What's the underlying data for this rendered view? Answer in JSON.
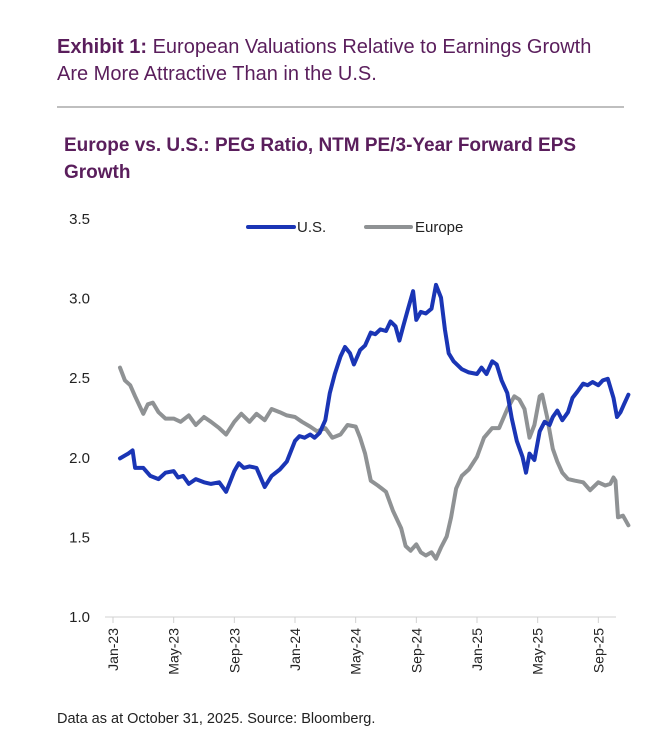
{
  "header": {
    "exhibit_label": "Exhibit 1:",
    "exhibit_title": "European Valuations Relative to Earnings Growth Are More Attractive Than in the U.S."
  },
  "footer": {
    "source": "Data as at October 31, 2025. Source: Bloomberg."
  },
  "colors": {
    "us": "#1a35b5",
    "europe": "#8f9294",
    "title": "#5a1e5c"
  },
  "chart_data": {
    "type": "line",
    "title": "Europe vs. U.S.: PEG Ratio, NTM PE/3-Year Forward EPS Growth",
    "xlabel": "",
    "ylabel": "",
    "ylim": [
      1.0,
      3.5
    ],
    "yticks": [
      "1.0",
      "1.5",
      "2.0",
      "2.5",
      "3.0",
      "3.5"
    ],
    "xlim": [
      "2023-01",
      "2025-10-31"
    ],
    "xticks": [
      "Jan-23",
      "May-23",
      "Sep-23",
      "Jan-24",
      "May-24",
      "Sep-24",
      "Jan-25",
      "May-25",
      "Sep-25"
    ],
    "legend": "top",
    "grid": false,
    "series": [
      {
        "name": "U.S.",
        "color": "#1a35b5",
        "points": [
          [
            "2023-01-15",
            1.99
          ],
          [
            "2023-02-01",
            2.02
          ],
          [
            "2023-02-10",
            2.04
          ],
          [
            "2023-02-15",
            1.93
          ],
          [
            "2023-03-01",
            1.93
          ],
          [
            "2023-03-15",
            1.88
          ],
          [
            "2023-04-01",
            1.86
          ],
          [
            "2023-04-15",
            1.9
          ],
          [
            "2023-05-01",
            1.91
          ],
          [
            "2023-05-10",
            1.87
          ],
          [
            "2023-05-20",
            1.88
          ],
          [
            "2023-06-01",
            1.83
          ],
          [
            "2023-06-15",
            1.86
          ],
          [
            "2023-07-01",
            1.84
          ],
          [
            "2023-07-15",
            1.83
          ],
          [
            "2023-08-01",
            1.84
          ],
          [
            "2023-08-15",
            1.78
          ],
          [
            "2023-09-01",
            1.91
          ],
          [
            "2023-09-10",
            1.96
          ],
          [
            "2023-09-20",
            1.93
          ],
          [
            "2023-10-01",
            1.94
          ],
          [
            "2023-10-15",
            1.93
          ],
          [
            "2023-11-01",
            1.81
          ],
          [
            "2023-11-15",
            1.88
          ],
          [
            "2023-12-01",
            1.92
          ],
          [
            "2023-12-15",
            1.97
          ],
          [
            "2024-01-01",
            2.1
          ],
          [
            "2024-01-10",
            2.13
          ],
          [
            "2024-01-20",
            2.12
          ],
          [
            "2024-02-01",
            2.14
          ],
          [
            "2024-02-10",
            2.12
          ],
          [
            "2024-02-20",
            2.15
          ],
          [
            "2024-03-01",
            2.23
          ],
          [
            "2024-03-10",
            2.4
          ],
          [
            "2024-03-20",
            2.52
          ],
          [
            "2024-04-01",
            2.63
          ],
          [
            "2024-04-10",
            2.69
          ],
          [
            "2024-04-20",
            2.65
          ],
          [
            "2024-04-28",
            2.58
          ],
          [
            "2024-05-10",
            2.67
          ],
          [
            "2024-05-20",
            2.7
          ],
          [
            "2024-06-01",
            2.78
          ],
          [
            "2024-06-10",
            2.77
          ],
          [
            "2024-06-20",
            2.8
          ],
          [
            "2024-07-01",
            2.79
          ],
          [
            "2024-07-10",
            2.85
          ],
          [
            "2024-07-20",
            2.82
          ],
          [
            "2024-07-28",
            2.73
          ],
          [
            "2024-08-05",
            2.82
          ],
          [
            "2024-08-15",
            2.93
          ],
          [
            "2024-08-25",
            3.04
          ],
          [
            "2024-09-01",
            2.86
          ],
          [
            "2024-09-10",
            2.91
          ],
          [
            "2024-09-20",
            2.9
          ],
          [
            "2024-10-01",
            2.93
          ],
          [
            "2024-10-10",
            3.08
          ],
          [
            "2024-10-20",
            3.0
          ],
          [
            "2024-10-28",
            2.8
          ],
          [
            "2024-11-05",
            2.65
          ],
          [
            "2024-11-15",
            2.6
          ],
          [
            "2024-12-01",
            2.55
          ],
          [
            "2024-12-15",
            2.53
          ],
          [
            "2025-01-01",
            2.52
          ],
          [
            "2025-01-10",
            2.56
          ],
          [
            "2025-01-20",
            2.52
          ],
          [
            "2025-02-01",
            2.6
          ],
          [
            "2025-02-10",
            2.58
          ],
          [
            "2025-02-20",
            2.48
          ],
          [
            "2025-03-01",
            2.4
          ],
          [
            "2025-03-10",
            2.24
          ],
          [
            "2025-03-20",
            2.1
          ],
          [
            "2025-04-01",
            2.0
          ],
          [
            "2025-04-08",
            1.9
          ],
          [
            "2025-04-15",
            2.02
          ],
          [
            "2025-04-25",
            1.98
          ],
          [
            "2025-05-05",
            2.16
          ],
          [
            "2025-05-15",
            2.22
          ],
          [
            "2025-05-25",
            2.2
          ],
          [
            "2025-06-01",
            2.25
          ],
          [
            "2025-06-10",
            2.29
          ],
          [
            "2025-06-20",
            2.23
          ],
          [
            "2025-07-01",
            2.28
          ],
          [
            "2025-07-10",
            2.37
          ],
          [
            "2025-07-20",
            2.41
          ],
          [
            "2025-08-01",
            2.46
          ],
          [
            "2025-08-10",
            2.45
          ],
          [
            "2025-08-20",
            2.47
          ],
          [
            "2025-09-01",
            2.45
          ],
          [
            "2025-09-10",
            2.48
          ],
          [
            "2025-09-20",
            2.49
          ],
          [
            "2025-10-01",
            2.37
          ],
          [
            "2025-10-08",
            2.25
          ],
          [
            "2025-10-15",
            2.28
          ],
          [
            "2025-10-22",
            2.33
          ],
          [
            "2025-10-31",
            2.39
          ]
        ]
      },
      {
        "name": "Europe",
        "color": "#8f9294",
        "points": [
          [
            "2023-01-15",
            2.56
          ],
          [
            "2023-01-25",
            2.48
          ],
          [
            "2023-02-05",
            2.45
          ],
          [
            "2023-02-15",
            2.38
          ],
          [
            "2023-03-01",
            2.27
          ],
          [
            "2023-03-10",
            2.33
          ],
          [
            "2023-03-20",
            2.34
          ],
          [
            "2023-04-01",
            2.28
          ],
          [
            "2023-04-15",
            2.24
          ],
          [
            "2023-05-01",
            2.24
          ],
          [
            "2023-05-15",
            2.22
          ],
          [
            "2023-06-01",
            2.26
          ],
          [
            "2023-06-15",
            2.2
          ],
          [
            "2023-07-01",
            2.25
          ],
          [
            "2023-07-15",
            2.22
          ],
          [
            "2023-08-01",
            2.18
          ],
          [
            "2023-08-15",
            2.14
          ],
          [
            "2023-09-01",
            2.22
          ],
          [
            "2023-09-15",
            2.27
          ],
          [
            "2023-10-01",
            2.22
          ],
          [
            "2023-10-15",
            2.27
          ],
          [
            "2023-11-01",
            2.23
          ],
          [
            "2023-11-15",
            2.3
          ],
          [
            "2023-12-01",
            2.28
          ],
          [
            "2023-12-15",
            2.26
          ],
          [
            "2024-01-01",
            2.25
          ],
          [
            "2024-01-15",
            2.22
          ],
          [
            "2024-02-01",
            2.19
          ],
          [
            "2024-02-15",
            2.16
          ],
          [
            "2024-03-01",
            2.18
          ],
          [
            "2024-03-15",
            2.12
          ],
          [
            "2024-04-01",
            2.14
          ],
          [
            "2024-04-15",
            2.2
          ],
          [
            "2024-05-01",
            2.19
          ],
          [
            "2024-05-10",
            2.12
          ],
          [
            "2024-05-20",
            2.02
          ],
          [
            "2024-06-01",
            1.85
          ],
          [
            "2024-06-15",
            1.82
          ],
          [
            "2024-07-01",
            1.78
          ],
          [
            "2024-07-15",
            1.66
          ],
          [
            "2024-08-01",
            1.55
          ],
          [
            "2024-08-10",
            1.44
          ],
          [
            "2024-08-20",
            1.41
          ],
          [
            "2024-09-01",
            1.45
          ],
          [
            "2024-09-10",
            1.4
          ],
          [
            "2024-09-20",
            1.38
          ],
          [
            "2024-10-01",
            1.4
          ],
          [
            "2024-10-10",
            1.36
          ],
          [
            "2024-10-20",
            1.43
          ],
          [
            "2024-11-01",
            1.5
          ],
          [
            "2024-11-10",
            1.62
          ],
          [
            "2024-11-20",
            1.8
          ],
          [
            "2024-12-01",
            1.88
          ],
          [
            "2024-12-15",
            1.92
          ],
          [
            "2025-01-01",
            2.0
          ],
          [
            "2025-01-15",
            2.12
          ],
          [
            "2025-02-01",
            2.18
          ],
          [
            "2025-02-15",
            2.18
          ],
          [
            "2025-03-01",
            2.3
          ],
          [
            "2025-03-15",
            2.38
          ],
          [
            "2025-03-25",
            2.36
          ],
          [
            "2025-04-05",
            2.3
          ],
          [
            "2025-04-15",
            2.12
          ],
          [
            "2025-04-25",
            2.2
          ],
          [
            "2025-05-05",
            2.38
          ],
          [
            "2025-05-10",
            2.39
          ],
          [
            "2025-05-20",
            2.25
          ],
          [
            "2025-06-01",
            2.05
          ],
          [
            "2025-06-10",
            1.97
          ],
          [
            "2025-06-20",
            1.9
          ],
          [
            "2025-07-01",
            1.86
          ],
          [
            "2025-07-15",
            1.85
          ],
          [
            "2025-08-01",
            1.84
          ],
          [
            "2025-08-15",
            1.79
          ],
          [
            "2025-09-01",
            1.84
          ],
          [
            "2025-09-15",
            1.82
          ],
          [
            "2025-09-25",
            1.83
          ],
          [
            "2025-10-01",
            1.87
          ],
          [
            "2025-10-05",
            1.85
          ],
          [
            "2025-10-10",
            1.62
          ],
          [
            "2025-10-20",
            1.63
          ],
          [
            "2025-10-31",
            1.57
          ]
        ]
      }
    ]
  }
}
